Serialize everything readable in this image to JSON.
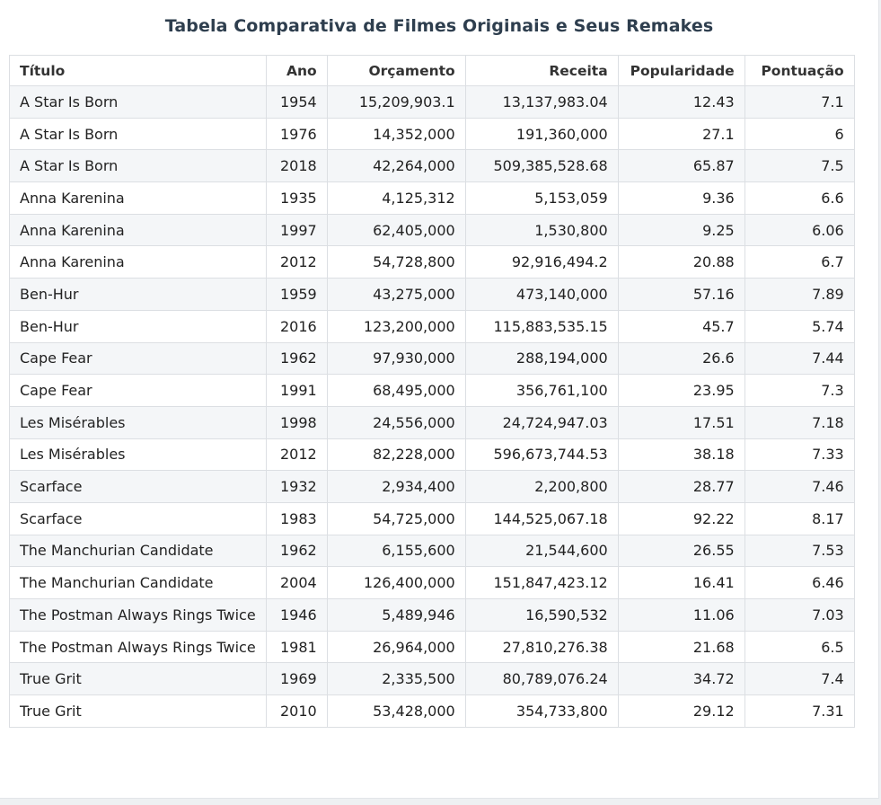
{
  "chart_data": {
    "type": "table",
    "title": "Tabela Comparativa de Filmes Originais e Seus Remakes",
    "columns": [
      "Título",
      "Ano",
      "Orçamento",
      "Receita",
      "Popularidade",
      "Pontuação"
    ],
    "rows": [
      [
        "A Star Is Born",
        "1954",
        "15,209,903.1",
        "13,137,983.04",
        "12.43",
        "7.1"
      ],
      [
        "A Star Is Born",
        "1976",
        "14,352,000",
        "191,360,000",
        "27.1",
        "6"
      ],
      [
        "A Star Is Born",
        "2018",
        "42,264,000",
        "509,385,528.68",
        "65.87",
        "7.5"
      ],
      [
        "Anna Karenina",
        "1935",
        "4,125,312",
        "5,153,059",
        "9.36",
        "6.6"
      ],
      [
        "Anna Karenina",
        "1997",
        "62,405,000",
        "1,530,800",
        "9.25",
        "6.06"
      ],
      [
        "Anna Karenina",
        "2012",
        "54,728,800",
        "92,916,494.2",
        "20.88",
        "6.7"
      ],
      [
        "Ben-Hur",
        "1959",
        "43,275,000",
        "473,140,000",
        "57.16",
        "7.89"
      ],
      [
        "Ben-Hur",
        "2016",
        "123,200,000",
        "115,883,535.15",
        "45.7",
        "5.74"
      ],
      [
        "Cape Fear",
        "1962",
        "97,930,000",
        "288,194,000",
        "26.6",
        "7.44"
      ],
      [
        "Cape Fear",
        "1991",
        "68,495,000",
        "356,761,100",
        "23.95",
        "7.3"
      ],
      [
        "Les Misérables",
        "1998",
        "24,556,000",
        "24,724,947.03",
        "17.51",
        "7.18"
      ],
      [
        "Les Misérables",
        "2012",
        "82,228,000",
        "596,673,744.53",
        "38.18",
        "7.33"
      ],
      [
        "Scarface",
        "1932",
        "2,934,400",
        "2,200,800",
        "28.77",
        "7.46"
      ],
      [
        "Scarface",
        "1983",
        "54,725,000",
        "144,525,067.18",
        "92.22",
        "8.17"
      ],
      [
        "The Manchurian Candidate",
        "1962",
        "6,155,600",
        "21,544,600",
        "26.55",
        "7.53"
      ],
      [
        "The Manchurian Candidate",
        "2004",
        "126,400,000",
        "151,847,423.12",
        "16.41",
        "6.46"
      ],
      [
        "The Postman Always Rings Twice",
        "1946",
        "5,489,946",
        "16,590,532",
        "11.06",
        "7.03"
      ],
      [
        "The Postman Always Rings Twice",
        "1981",
        "26,964,000",
        "27,810,276.38",
        "21.68",
        "6.5"
      ],
      [
        "True Grit",
        "1969",
        "2,335,500",
        "80,789,076.24",
        "34.72",
        "7.4"
      ],
      [
        "True Grit",
        "2010",
        "53,428,000",
        "354,733,800",
        "29.12",
        "7.31"
      ]
    ]
  }
}
